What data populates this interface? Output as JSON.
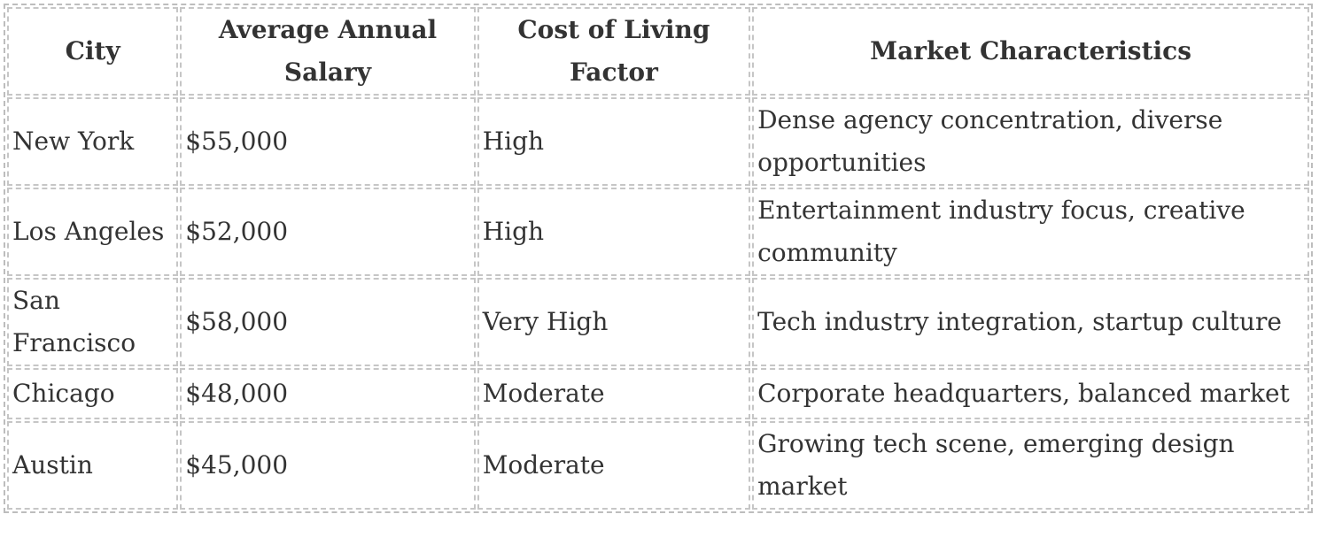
{
  "table": {
    "headers": [
      "City",
      "Average Annual Salary",
      "Cost of Living Factor",
      "Market Characteristics"
    ],
    "rows": [
      {
        "city": "New York",
        "salary": "$55,000",
        "cost": "High",
        "market": "Dense agency concentration, diverse opportunities"
      },
      {
        "city": "Los Angeles",
        "salary": "$52,000",
        "cost": "High",
        "market": "Entertainment industry focus, creative community"
      },
      {
        "city": "San Francisco",
        "salary": "$58,000",
        "cost": "Very High",
        "market": "Tech industry integration, startup culture"
      },
      {
        "city": "Chicago",
        "salary": "$48,000",
        "cost": "Moderate",
        "market": "Corporate headquarters, balanced market"
      },
      {
        "city": "Austin",
        "salary": "$45,000",
        "cost": "Moderate",
        "market": "Growing tech scene, emerging design market"
      }
    ]
  }
}
